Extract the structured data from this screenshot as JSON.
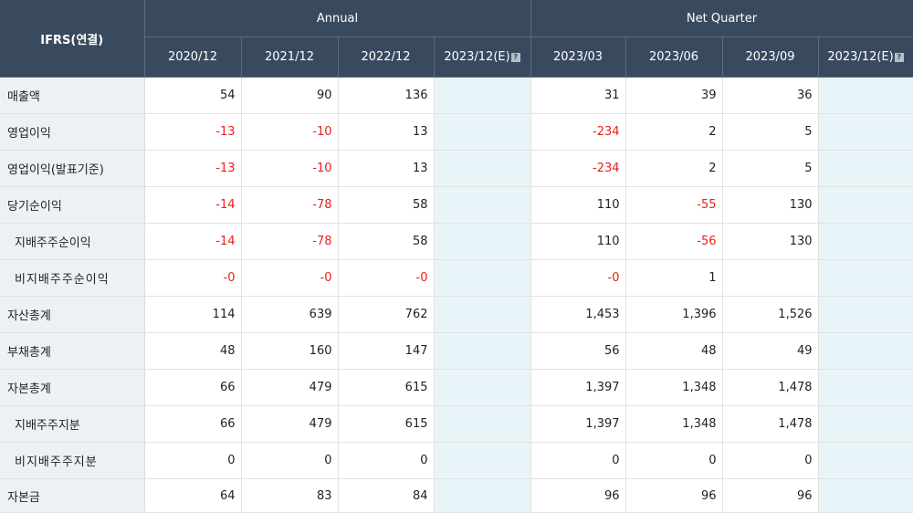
{
  "header": {
    "corner": "IFRS(연결)",
    "annual": "Annual",
    "net_quarter": "Net Quarter",
    "annual_periods": [
      "2020/12",
      "2021/12",
      "2022/12",
      "2023/12(E)"
    ],
    "quarter_periods": [
      "2023/03",
      "2023/06",
      "2023/09",
      "2023/12(E)"
    ],
    "estimate_badge": "?"
  },
  "rows": [
    {
      "label": "매출액",
      "values": [
        "54",
        "90",
        "136",
        "",
        "31",
        "39",
        "36",
        ""
      ]
    },
    {
      "label": "영업이익",
      "values": [
        "-13",
        "-10",
        "13",
        "",
        "-234",
        "2",
        "5",
        ""
      ]
    },
    {
      "label": "영업이익(발표기준)",
      "values": [
        "-13",
        "-10",
        "13",
        "",
        "-234",
        "2",
        "5",
        ""
      ]
    },
    {
      "label": "당기순이익",
      "values": [
        "-14",
        "-78",
        "58",
        "",
        "110",
        "-55",
        "130",
        ""
      ]
    },
    {
      "label": "지배주주순이익",
      "values": [
        "-14",
        "-78",
        "58",
        "",
        "110",
        "-56",
        "130",
        ""
      ]
    },
    {
      "label": "비지배주주순이익",
      "values": [
        "-0",
        "-0",
        "-0",
        "",
        "-0",
        "1",
        "",
        ""
      ]
    },
    {
      "label": "자산총계",
      "values": [
        "114",
        "639",
        "762",
        "",
        "1,453",
        "1,396",
        "1,526",
        ""
      ]
    },
    {
      "label": "부채총계",
      "values": [
        "48",
        "160",
        "147",
        "",
        "56",
        "48",
        "49",
        ""
      ]
    },
    {
      "label": "자본총계",
      "values": [
        "66",
        "479",
        "615",
        "",
        "1,397",
        "1,348",
        "1,478",
        ""
      ]
    },
    {
      "label": "지배주주지분",
      "values": [
        "66",
        "479",
        "615",
        "",
        "1,397",
        "1,348",
        "1,478",
        ""
      ]
    },
    {
      "label": "비지배주주지분",
      "values": [
        "0",
        "0",
        "0",
        "",
        "0",
        "0",
        "0",
        ""
      ]
    },
    {
      "label": "자본금",
      "values": [
        "64",
        "83",
        "84",
        "",
        "96",
        "96",
        "96",
        ""
      ]
    }
  ],
  "colors": {
    "header_bg": "#3a4a5e",
    "label_bg": "#edf1f6",
    "estimate_bg": "#e9f4f8",
    "negative": "#e8201c"
  }
}
